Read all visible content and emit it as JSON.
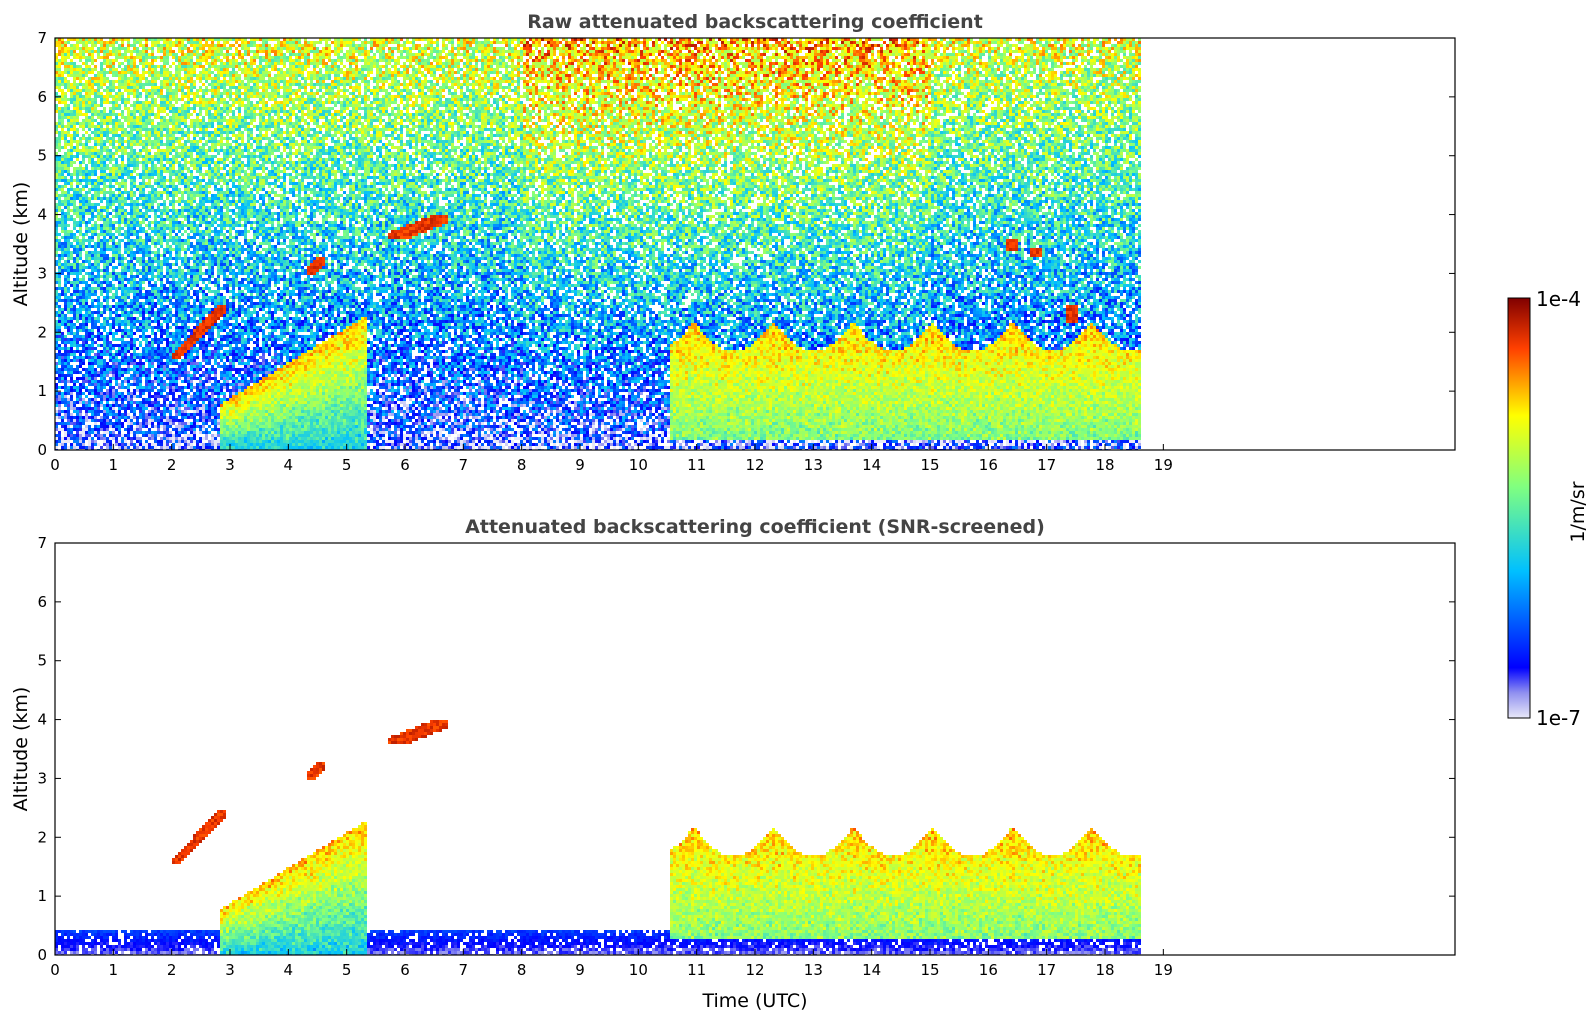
{
  "chart_data": [
    {
      "type": "heatmap",
      "title": "Raw attenuated backscattering coefficient",
      "xlabel": "",
      "ylabel": "Altitude (km)",
      "xlim": [
        0,
        24
      ],
      "ylim": [
        0,
        7
      ],
      "x_ticks": [
        "0",
        "1",
        "2",
        "3",
        "4",
        "5",
        "6",
        "7",
        "8",
        "9",
        "10",
        "11",
        "12",
        "13",
        "14",
        "15",
        "16",
        "17",
        "18",
        "19"
      ],
      "y_ticks": [
        "0",
        "1",
        "2",
        "3",
        "4",
        "5",
        "6",
        "7"
      ],
      "data_extent_x": [
        0,
        18.6
      ],
      "features": [
        {
          "kind": "noise_background",
          "x": [
            0,
            18.6
          ],
          "y": [
            0,
            7
          ]
        },
        {
          "kind": "aerosol_layer",
          "x": [
            2.0,
            2.9
          ],
          "y": [
            1.55,
            2.5
          ],
          "level": "high"
        },
        {
          "kind": "aerosol_layer",
          "x": [
            4.3,
            4.6
          ],
          "y": [
            3.0,
            3.3
          ],
          "level": "high"
        },
        {
          "kind": "aerosol_layer",
          "x": [
            5.7,
            6.7
          ],
          "y": [
            3.6,
            4.0
          ],
          "level": "high"
        },
        {
          "kind": "boundary_layer",
          "x": [
            10.5,
            18.6
          ],
          "y": [
            0.2,
            2.2
          ],
          "level": "medium"
        },
        {
          "kind": "convective_plumes",
          "x": [
            2.8,
            5.3
          ],
          "y": [
            0,
            2.3
          ],
          "level": "medium"
        },
        {
          "kind": "cloud_patch",
          "x": [
            16.3,
            16.5
          ],
          "y": [
            3.4,
            3.6
          ],
          "level": "high"
        },
        {
          "kind": "cloud_patch",
          "x": [
            16.7,
            16.9
          ],
          "y": [
            3.3,
            3.45
          ],
          "level": "high"
        },
        {
          "kind": "cloud_patch",
          "x": [
            17.3,
            17.5
          ],
          "y": [
            2.2,
            2.5
          ],
          "level": "high"
        }
      ]
    },
    {
      "type": "heatmap",
      "title": "Attenuated backscattering coefficient (SNR-screened)",
      "xlabel": "Time (UTC)",
      "ylabel": "Altitude (km)",
      "xlim": [
        0,
        24
      ],
      "ylim": [
        0,
        7
      ],
      "x_ticks": [
        "0",
        "1",
        "2",
        "3",
        "4",
        "5",
        "6",
        "7",
        "8",
        "9",
        "10",
        "11",
        "12",
        "13",
        "14",
        "15",
        "16",
        "17",
        "18",
        "19"
      ],
      "y_ticks": [
        "0",
        "1",
        "2",
        "3",
        "4",
        "5",
        "6",
        "7"
      ],
      "data_extent_x": [
        0,
        18.6
      ],
      "features": [
        {
          "kind": "near_surface_layer",
          "x": [
            0,
            18.6
          ],
          "y": [
            0,
            0.5
          ],
          "level": "low"
        },
        {
          "kind": "aerosol_layer",
          "x": [
            2.0,
            2.9
          ],
          "y": [
            1.55,
            2.5
          ],
          "level": "high"
        },
        {
          "kind": "aerosol_layer",
          "x": [
            4.3,
            4.6
          ],
          "y": [
            3.0,
            3.3
          ],
          "level": "high"
        },
        {
          "kind": "aerosol_layer",
          "x": [
            5.7,
            6.7
          ],
          "y": [
            3.6,
            4.0
          ],
          "level": "high"
        },
        {
          "kind": "boundary_layer",
          "x": [
            10.5,
            18.6
          ],
          "y": [
            0.3,
            2.2
          ],
          "level": "medium"
        },
        {
          "kind": "convective_plumes",
          "x": [
            2.8,
            5.3
          ],
          "y": [
            0,
            2.3
          ],
          "level": "medium"
        }
      ]
    }
  ],
  "colorbar": {
    "label": "1/m/sr",
    "min_label": "1e-7",
    "max_label": "1e-4",
    "colormap": "jet",
    "colors": [
      "#e8e8f8",
      "#0000ff",
      "#00c0ff",
      "#80ff80",
      "#ffff00",
      "#ff4000",
      "#800000"
    ]
  }
}
